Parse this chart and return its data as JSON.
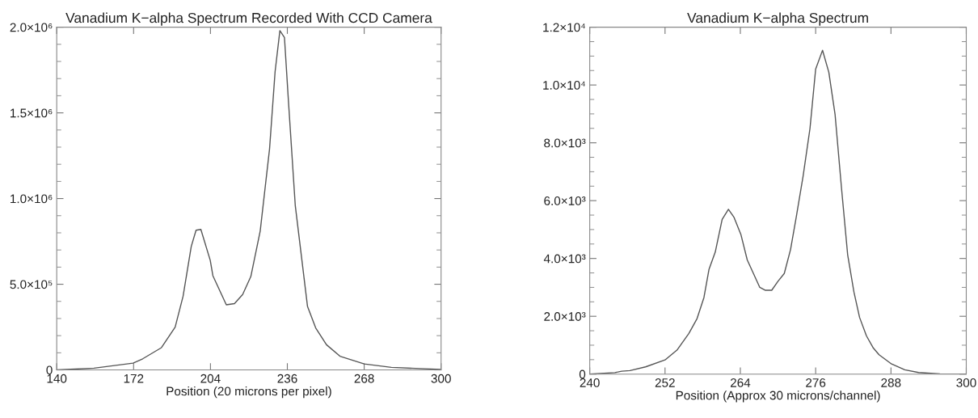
{
  "chart_data": [
    {
      "type": "line",
      "title": "Vanadium K−alpha Spectrum Recorded With CCD Camera",
      "xlabel": "Position (20 microns per pixel)",
      "x": [
        140,
        155.5,
        171.8,
        175.8,
        183.6,
        189.3,
        192.6,
        196,
        198,
        200,
        203.9,
        205,
        210.6,
        214,
        217.4,
        220.8,
        224.7,
        228.6,
        230.9,
        232.9,
        234.8,
        236.5,
        239.3,
        244.4,
        247.8,
        252.3,
        257.9,
        268,
        279.3,
        300
      ],
      "series": [
        {
          "color": "#555555",
          "values": [
            0,
            10000,
            40000,
            65000,
            130000,
            250000,
            430000,
            720000,
            815000,
            820000,
            640000,
            550000,
            380000,
            387000,
            440000,
            545000,
            810000,
            1290000,
            1740000,
            1980000,
            1940000,
            1560000,
            960000,
            370000,
            245000,
            147000,
            80000,
            35000,
            15000,
            3000
          ]
        }
      ],
      "xlim": [
        140,
        300
      ],
      "ylim": [
        0,
        2000000
      ],
      "xticks": [
        140,
        172,
        204,
        236,
        268,
        300
      ],
      "yticks": [
        {
          "value": 0,
          "label": "0"
        },
        {
          "value": 100000,
          "label": null
        },
        {
          "value": 200000,
          "label": null
        },
        {
          "value": 300000,
          "label": null
        },
        {
          "value": 400000,
          "label": null
        },
        {
          "value": 500000,
          "label": "5.0×10⁵"
        },
        {
          "value": 600000,
          "label": null
        },
        {
          "value": 700000,
          "label": null
        },
        {
          "value": 800000,
          "label": null
        },
        {
          "value": 900000,
          "label": null
        },
        {
          "value": 1000000,
          "label": "1.0×10⁶"
        },
        {
          "value": 1100000,
          "label": null
        },
        {
          "value": 1200000,
          "label": null
        },
        {
          "value": 1300000,
          "label": null
        },
        {
          "value": 1400000,
          "label": null
        },
        {
          "value": 1500000,
          "label": "1.5×10⁶"
        },
        {
          "value": 1600000,
          "label": null
        },
        {
          "value": 1700000,
          "label": null
        },
        {
          "value": 1800000,
          "label": null
        },
        {
          "value": 1900000,
          "label": null
        },
        {
          "value": 2000000,
          "label": "2.0×10⁶"
        }
      ],
      "grid": false,
      "legend": false,
      "marker": "none",
      "line_style": "solid"
    },
    {
      "type": "line",
      "title": "Vanadium K−alpha Spectrum",
      "xlabel": "Position (Approx 30 microns/channel)",
      "x": [
        240,
        244,
        245.1,
        246.4,
        248.9,
        252,
        253.9,
        255.8,
        257.1,
        258.2,
        259,
        260,
        261.1,
        262.1,
        263,
        264.1,
        265.1,
        267.1,
        268,
        269,
        270,
        271,
        272,
        272.9,
        274,
        275.1,
        276,
        277.1,
        278.1,
        279.1,
        280.1,
        281.1,
        282.1,
        283,
        284.1,
        285.2,
        286.1,
        288.1,
        290.2,
        292.4,
        295.8,
        300
      ],
      "series": [
        {
          "color": "#555555",
          "values": [
            0,
            50,
            100,
            120,
            250,
            490,
            830,
            1410,
            1920,
            2650,
            3620,
            4220,
            5350,
            5700,
            5420,
            4820,
            3950,
            3000,
            2900,
            2900,
            3210,
            3480,
            4310,
            5420,
            6850,
            8500,
            10550,
            11200,
            10440,
            8970,
            6480,
            4130,
            2840,
            1960,
            1320,
            900,
            670,
            350,
            150,
            55,
            10,
            0
          ]
        }
      ],
      "xlim": [
        240,
        300
      ],
      "ylim": [
        0,
        12000
      ],
      "xticks": [
        240,
        252,
        264,
        276,
        288,
        300
      ],
      "yticks": [
        {
          "value": 0,
          "label": "0"
        },
        {
          "value": 500,
          "label": null
        },
        {
          "value": 1000,
          "label": null
        },
        {
          "value": 1500,
          "label": null
        },
        {
          "value": 2000,
          "label": "2.0×10³"
        },
        {
          "value": 2500,
          "label": null
        },
        {
          "value": 3000,
          "label": null
        },
        {
          "value": 3500,
          "label": null
        },
        {
          "value": 4000,
          "label": "4.0×10³"
        },
        {
          "value": 4500,
          "label": null
        },
        {
          "value": 5000,
          "label": null
        },
        {
          "value": 5500,
          "label": null
        },
        {
          "value": 6000,
          "label": "6.0×10³"
        },
        {
          "value": 6500,
          "label": null
        },
        {
          "value": 7000,
          "label": null
        },
        {
          "value": 7500,
          "label": null
        },
        {
          "value": 8000,
          "label": "8.0×10³"
        },
        {
          "value": 8500,
          "label": null
        },
        {
          "value": 9000,
          "label": null
        },
        {
          "value": 9500,
          "label": null
        },
        {
          "value": 10000,
          "label": "1.0×10⁴"
        },
        {
          "value": 10500,
          "label": null
        },
        {
          "value": 11000,
          "label": null
        },
        {
          "value": 11500,
          "label": null
        },
        {
          "value": 12000,
          "label": "1.2×10⁴"
        }
      ],
      "grid": false,
      "legend": false,
      "marker": "none",
      "line_style": "solid"
    }
  ]
}
